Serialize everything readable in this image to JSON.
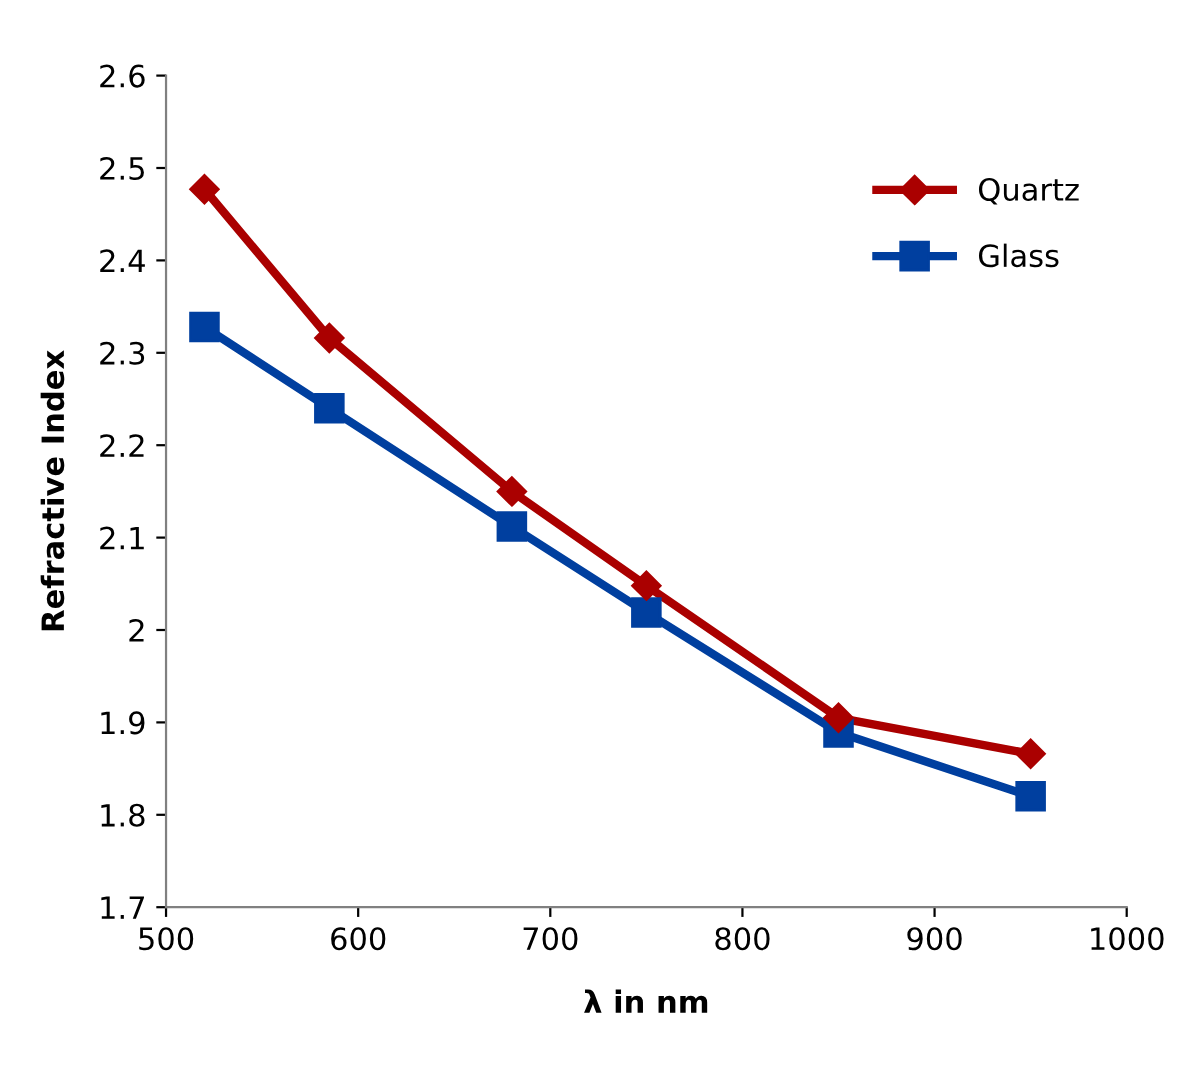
{
  "chart_data": {
    "type": "line",
    "xlabel": "λ in nm",
    "ylabel": "Refractive Index",
    "x": [
      520,
      585,
      680,
      750,
      850,
      950
    ],
    "series": [
      {
        "name": "Quartz",
        "color": "#aa0000",
        "marker": "diamond",
        "values": [
          2.477,
          2.316,
          2.15,
          2.048,
          1.905,
          1.866
        ]
      },
      {
        "name": "Glass",
        "color": "#003f9f",
        "marker": "square",
        "values": [
          2.328,
          2.24,
          2.112,
          2.019,
          1.889,
          1.82
        ]
      }
    ],
    "xlim": [
      500,
      1000
    ],
    "xticks": [
      500,
      600,
      700,
      800,
      900,
      1000
    ],
    "ylim": [
      1.7,
      2.6
    ],
    "yticks": [
      1.7,
      1.8,
      1.9,
      2,
      2.1,
      2.2,
      2.3,
      2.4,
      2.5,
      2.6
    ],
    "grid": false,
    "legend": "right",
    "line_style": "solid"
  }
}
